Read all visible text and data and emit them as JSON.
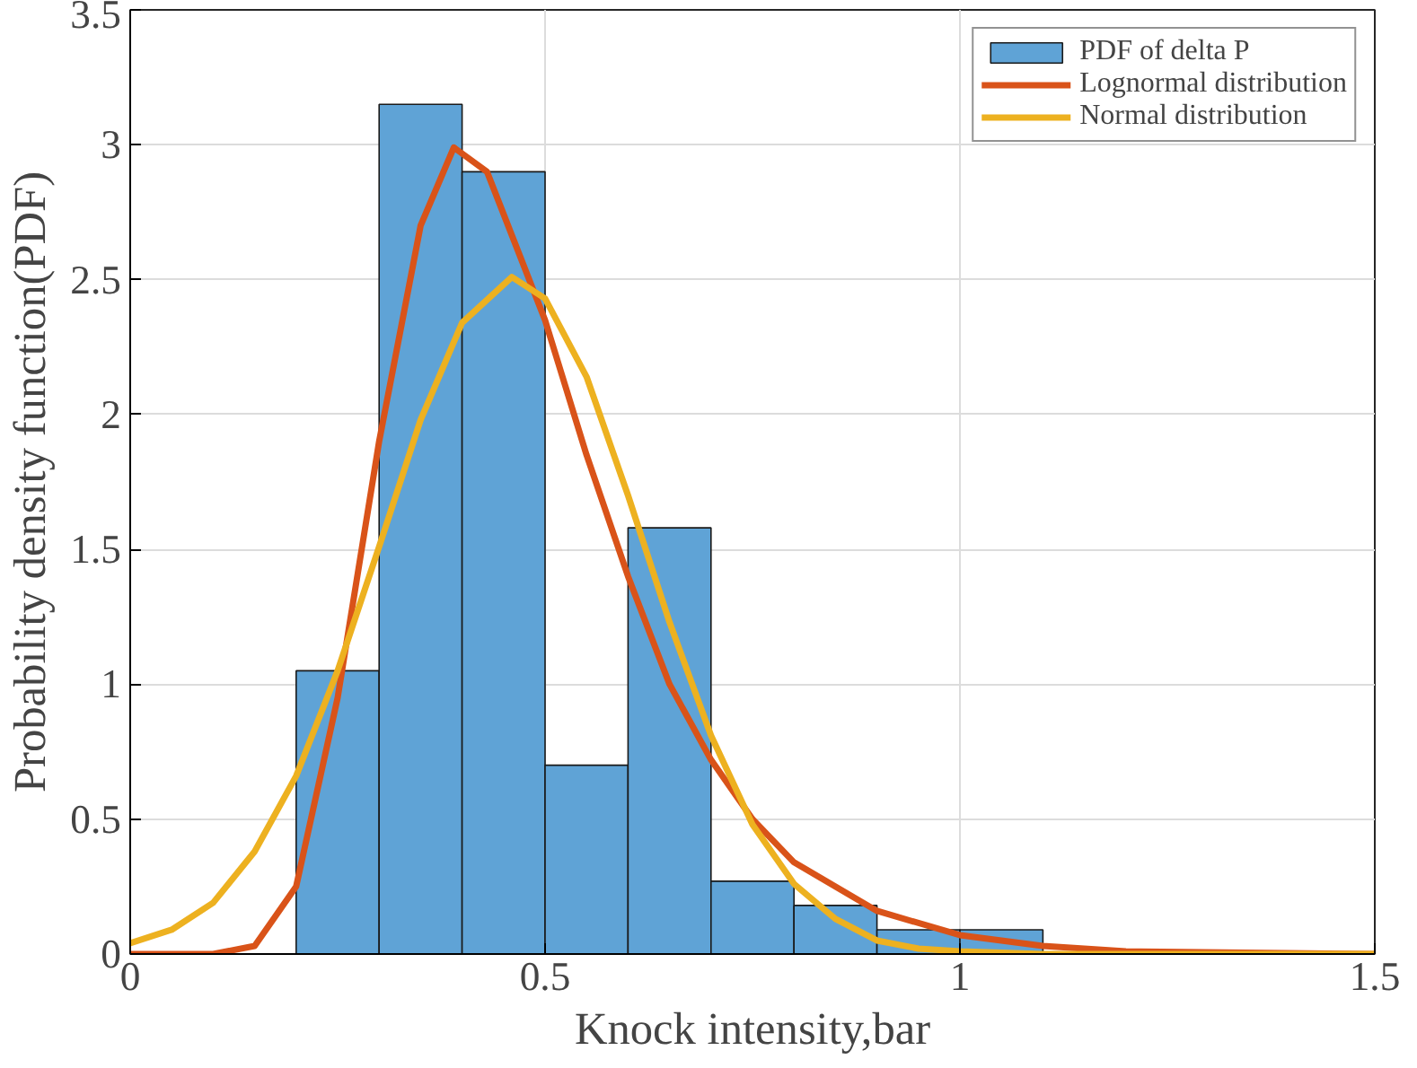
{
  "chart_data": {
    "type": "histogram",
    "xlabel": "Knock intensity,bar",
    "ylabel": "Probability density function(PDF)",
    "xlim": [
      0,
      1.5
    ],
    "ylim": [
      0,
      3.5
    ],
    "xticks": [
      0,
      0.5,
      1,
      1.5
    ],
    "yticks": [
      0,
      0.5,
      1,
      1.5,
      2,
      2.5,
      3,
      3.5
    ],
    "grid": true,
    "legend": "top right",
    "series": [
      {
        "name": "PDF of delta P",
        "color": "#5fa3d6",
        "bins": [
          0.2,
          0.3,
          0.4,
          0.5,
          0.6,
          0.7,
          0.8,
          0.9,
          1.0,
          1.1
        ],
        "values": [
          1.05,
          3.15,
          2.9,
          0.7,
          1.58,
          0.27,
          0.18,
          0.09,
          0.09
        ]
      },
      {
        "type": "line",
        "name": "Lognormal distribution",
        "color": "#d95319",
        "x": [
          0,
          0.1,
          0.15,
          0.2,
          0.25,
          0.3,
          0.35,
          0.39,
          0.43,
          0.5,
          0.55,
          0.6,
          0.65,
          0.7,
          0.75,
          0.8,
          0.9,
          1.0,
          1.1,
          1.2,
          1.5
        ],
        "values": [
          0,
          0,
          0.03,
          0.25,
          0.95,
          1.9,
          2.7,
          2.99,
          2.9,
          2.35,
          1.85,
          1.4,
          1.0,
          0.72,
          0.5,
          0.34,
          0.16,
          0.07,
          0.03,
          0.01,
          0
        ]
      },
      {
        "type": "line",
        "name": "Normal distribution",
        "color": "#edb120",
        "x": [
          0,
          0.05,
          0.1,
          0.15,
          0.2,
          0.25,
          0.3,
          0.35,
          0.4,
          0.46,
          0.5,
          0.55,
          0.6,
          0.65,
          0.7,
          0.75,
          0.8,
          0.85,
          0.9,
          0.95,
          1.0,
          1.1,
          1.5
        ],
        "values": [
          0.04,
          0.09,
          0.19,
          0.38,
          0.66,
          1.05,
          1.51,
          1.98,
          2.34,
          2.51,
          2.43,
          2.14,
          1.7,
          1.23,
          0.81,
          0.48,
          0.26,
          0.13,
          0.05,
          0.02,
          0.01,
          0,
          0
        ]
      }
    ]
  }
}
